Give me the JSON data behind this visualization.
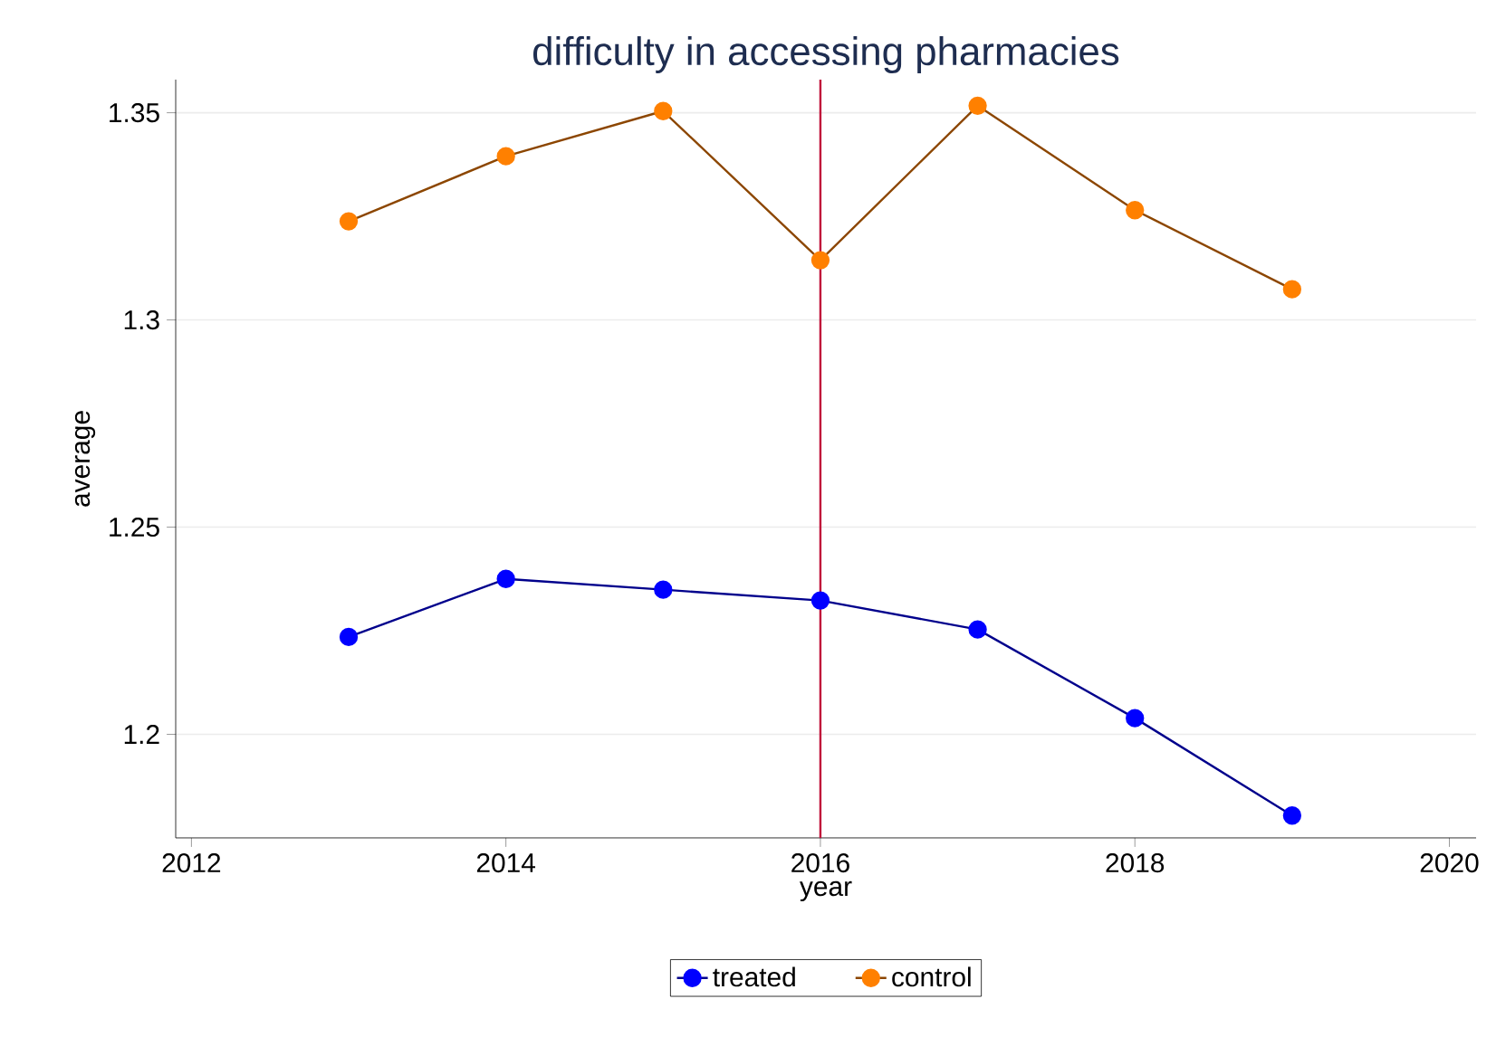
{
  "chart_data": {
    "type": "line",
    "title": "difficulty in accessing pharmacies",
    "xlabel": "year",
    "ylabel": "average",
    "x": [
      2013,
      2014,
      2015,
      2016,
      2017,
      2018,
      2019
    ],
    "series": [
      {
        "name": "treated",
        "color": "#0000ff",
        "values": [
          1.2235,
          1.2375,
          1.2349,
          1.2323,
          1.2253,
          1.2039,
          1.1804
        ]
      },
      {
        "name": "control",
        "color": "#ff8000",
        "values": [
          1.3238,
          1.3395,
          1.3504,
          1.3144,
          1.3517,
          1.3265,
          1.3074
        ]
      }
    ],
    "xlim": [
      2011.9,
      2020.17
    ],
    "ylim": [
      1.175,
      1.358
    ],
    "xticks": [
      2012,
      2014,
      2016,
      2018,
      2020
    ],
    "yticks": [
      {
        "value": 1.2,
        "label": "1.2"
      },
      {
        "value": 1.25,
        "label": "1.25"
      },
      {
        "value": 1.3,
        "label": "1.3"
      },
      {
        "value": 1.35,
        "label": "1.35"
      }
    ],
    "ref_lines": [
      {
        "axis": "x",
        "value": 2016,
        "color": "#c0103a"
      }
    ],
    "grid": "y",
    "legend": "bottom",
    "marker": "circle",
    "line_style": "solid"
  }
}
